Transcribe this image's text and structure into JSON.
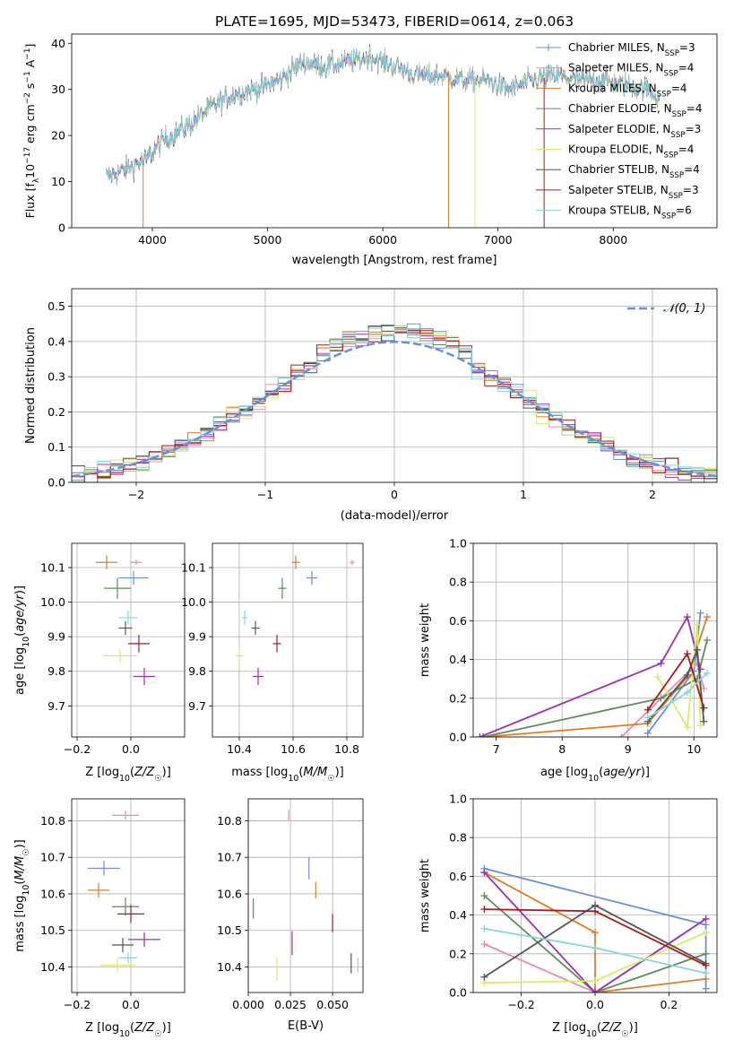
{
  "title": "PLATE=1695, MJD=53473, FIBERID=0614, z=0.063",
  "colors": {
    "Chabrier MILES": "#6a8fd8",
    "Salpeter MILES": "#e88cb0",
    "Kroupa MILES": "#e07b2a",
    "Chabrier ELODIE": "#5f8a5f",
    "Salpeter ELODIE": "#9b30b0",
    "Kroupa ELODIE": "#d6ec6a",
    "Chabrier STELIB": "#555555",
    "Salpeter STELIB": "#aa1a1a",
    "Kroupa STELIB": "#88d6dc"
  },
  "chart_data": [
    {
      "id": "spectrum",
      "type": "line",
      "title": "PLATE=1695, MJD=53473, FIBERID=0614, z=0.063",
      "xlabel": "wavelength [Angstrom, rest frame]",
      "ylabel_parts": [
        "Flux [f",
        "λ",
        "10",
        "−17",
        " erg cm",
        "−2",
        " s",
        "−1",
        " A",
        "−1",
        "]"
      ],
      "xlim": [
        3300,
        8900
      ],
      "ylim": [
        0,
        42
      ],
      "xticks": [
        4000,
        5000,
        6000,
        7000,
        8000
      ],
      "yticks": [
        0,
        10,
        20,
        30,
        40
      ],
      "continuum_x": [
        3600,
        3800,
        3950,
        4100,
        4300,
        4500,
        4700,
        4900,
        5100,
        5300,
        5500,
        5700,
        5900,
        6100,
        6300,
        6500,
        6700,
        6900,
        7100,
        7300,
        7500,
        7700,
        7900,
        8100,
        8300,
        8400
      ],
      "continuum_y": [
        11,
        13,
        15,
        19,
        22,
        26,
        29,
        30,
        32,
        36,
        35,
        36,
        37,
        35,
        33,
        33,
        32,
        32,
        30,
        32,
        33,
        32,
        32,
        31,
        30,
        28
      ],
      "legend": [
        {
          "label": "Chabrier MILES",
          "sub": "SSP",
          "n": "3"
        },
        {
          "label": "Salpeter MILES",
          "sub": "SSP",
          "n": "4"
        },
        {
          "label": "Kroupa MILES",
          "sub": "SSP",
          "n": "4"
        },
        {
          "label": "Chabrier ELODIE",
          "sub": "SSP",
          "n": "4"
        },
        {
          "label": "Salpeter ELODIE",
          "sub": "SSP",
          "n": "3"
        },
        {
          "label": "Kroupa ELODIE",
          "sub": "SSP",
          "n": "4"
        },
        {
          "label": "Chabrier STELIB",
          "sub": "SSP",
          "n": "4"
        },
        {
          "label": "Salpeter STELIB",
          "sub": "SSP",
          "n": "3"
        },
        {
          "label": "Kroupa STELIB",
          "sub": "SSP",
          "n": "6"
        }
      ]
    },
    {
      "id": "residuals",
      "type": "histogram",
      "xlabel": "(data-model)/error",
      "ylabel": "Normed distribution",
      "xlim": [
        -2.5,
        2.5
      ],
      "ylim": [
        0,
        0.55
      ],
      "xticks": [
        -2,
        -1,
        0,
        1,
        2
      ],
      "xtick_labels": [
        "−2",
        "−1",
        "0",
        "1",
        "2"
      ],
      "yticks": [
        0.0,
        0.1,
        0.2,
        0.3,
        0.4,
        0.5
      ],
      "ytick_labels": [
        "0.0",
        "0.1",
        "0.2",
        "0.3",
        "0.4",
        "0.5"
      ],
      "bin_width": 0.1,
      "legend": {
        "label": "N(0,1)",
        "sym": "𝒩(0, 1)"
      }
    },
    {
      "id": "Z-age",
      "type": "scatter",
      "xlabel": "Z [log10(Z/Z☉)]",
      "ylabel": "age  [log10(age/yr)]",
      "xlim": [
        -0.22,
        0.2
      ],
      "ylim": [
        9.61,
        10.17
      ],
      "xticks": [
        -0.2,
        0.0
      ],
      "xtick_labels": [
        "−0.2",
        "0.0"
      ],
      "yticks": [
        9.7,
        9.8,
        9.9,
        10.0,
        10.1
      ],
      "ytick_labels": [
        "9.7",
        "9.8",
        "9.9",
        "10.0",
        "10.1"
      ],
      "points": [
        {
          "name": "Chabrier MILES",
          "x": 0.01,
          "y": 10.07,
          "ex": 0.11,
          "ey": 0.04
        },
        {
          "name": "Salpeter MILES",
          "x": 0.02,
          "y": 10.115,
          "ex": 0.04,
          "ey": 0.015
        },
        {
          "name": "Kroupa MILES",
          "x": -0.09,
          "y": 10.115,
          "ex": 0.08,
          "ey": 0.04
        },
        {
          "name": "Chabrier ELODIE",
          "x": -0.05,
          "y": 10.04,
          "ex": 0.1,
          "ey": 0.06
        },
        {
          "name": "Salpeter ELODIE",
          "x": 0.05,
          "y": 9.785,
          "ex": 0.08,
          "ey": 0.05
        },
        {
          "name": "Kroupa ELODIE",
          "x": -0.04,
          "y": 9.845,
          "ex": 0.13,
          "ey": 0.04
        },
        {
          "name": "Chabrier STELIB",
          "x": -0.02,
          "y": 9.925,
          "ex": 0.05,
          "ey": 0.04
        },
        {
          "name": "Salpeter STELIB",
          "x": 0.03,
          "y": 9.88,
          "ex": 0.08,
          "ey": 0.05
        },
        {
          "name": "Kroupa STELIB",
          "x": -0.01,
          "y": 9.955,
          "ex": 0.07,
          "ey": 0.04
        }
      ]
    },
    {
      "id": "mass-age",
      "type": "scatter",
      "xlabel": "mass [log10(M/M☉)]",
      "ylabel": "",
      "xlim": [
        10.3,
        10.86
      ],
      "ylim": [
        9.61,
        10.17
      ],
      "xticks": [
        10.4,
        10.6,
        10.8
      ],
      "xtick_labels": [
        "10.4",
        "10.6",
        "10.8"
      ],
      "yticks": [
        9.7,
        9.8,
        9.9,
        10.0,
        10.1
      ],
      "ytick_labels": [
        "9.7",
        "9.8",
        "9.9",
        "10.0",
        "10.1"
      ],
      "points": [
        {
          "name": "Chabrier MILES",
          "x": 10.67,
          "y": 10.07,
          "ex": 0.04,
          "ey": 0.04
        },
        {
          "name": "Salpeter MILES",
          "x": 10.82,
          "y": 10.115,
          "ex": 0.02,
          "ey": 0.015
        },
        {
          "name": "Kroupa MILES",
          "x": 10.61,
          "y": 10.115,
          "ex": 0.03,
          "ey": 0.04
        },
        {
          "name": "Chabrier ELODIE",
          "x": 10.56,
          "y": 10.04,
          "ex": 0.03,
          "ey": 0.06
        },
        {
          "name": "Salpeter ELODIE",
          "x": 10.47,
          "y": 9.785,
          "ex": 0.04,
          "ey": 0.05
        },
        {
          "name": "Kroupa ELODIE",
          "x": 10.4,
          "y": 9.845,
          "ex": 0.03,
          "ey": 0.04
        },
        {
          "name": "Chabrier STELIB",
          "x": 10.46,
          "y": 9.925,
          "ex": 0.03,
          "ey": 0.04
        },
        {
          "name": "Salpeter STELIB",
          "x": 10.54,
          "y": 9.88,
          "ex": 0.03,
          "ey": 0.05
        },
        {
          "name": "Kroupa STELIB",
          "x": 10.42,
          "y": 9.955,
          "ex": 0.02,
          "ey": 0.04
        }
      ]
    },
    {
      "id": "age-weight",
      "type": "line",
      "xlabel": "age  [log10(age/yr)]",
      "ylabel": "mass weight",
      "xlim": [
        6.65,
        10.35
      ],
      "ylim": [
        0,
        1.0
      ],
      "xticks": [
        7,
        8,
        9,
        10
      ],
      "xtick_labels": [
        "7",
        "8",
        "9",
        "10"
      ],
      "yticks": [
        0.0,
        0.2,
        0.4,
        0.6,
        0.8,
        1.0
      ],
      "ytick_labels": [
        "0.0",
        "0.2",
        "0.4",
        "0.6",
        "0.8",
        "1.0"
      ],
      "series": [
        {
          "name": "Chabrier MILES",
          "x": [
            9.3,
            10.0,
            10.1
          ],
          "y": [
            0.02,
            0.34,
            0.64
          ]
        },
        {
          "name": "Salpeter MILES",
          "x": [
            8.9,
            10.05,
            10.15
          ],
          "y": [
            0.0,
            0.38,
            0.25
          ]
        },
        {
          "name": "Kroupa MILES",
          "x": [
            6.8,
            9.3,
            9.9,
            10.2
          ],
          "y": [
            0.0,
            0.07,
            0.31,
            0.62
          ]
        },
        {
          "name": "Chabrier ELODIE",
          "x": [
            6.8,
            9.5,
            10.05,
            10.2
          ],
          "y": [
            0.0,
            0.2,
            0.3,
            0.5
          ]
        },
        {
          "name": "Salpeter ELODIE",
          "x": [
            6.75,
            9.5,
            9.9,
            10.1
          ],
          "y": [
            0.0,
            0.38,
            0.62,
            0.35
          ]
        },
        {
          "name": "Kroupa ELODIE",
          "x": [
            9.45,
            9.9,
            10.05,
            10.1
          ],
          "y": [
            0.31,
            0.05,
            0.58,
            0.06
          ]
        },
        {
          "name": "Chabrier STELIB",
          "x": [
            9.3,
            9.9,
            10.05,
            10.15
          ],
          "y": [
            0.08,
            0.32,
            0.45,
            0.08
          ]
        },
        {
          "name": "Salpeter STELIB",
          "x": [
            9.3,
            9.9,
            10.15
          ],
          "y": [
            0.14,
            0.43,
            0.15
          ]
        },
        {
          "name": "Kroupa STELIB",
          "x": [
            9.3,
            9.9,
            10.2
          ],
          "y": [
            0.1,
            0.23,
            0.33
          ]
        }
      ]
    },
    {
      "id": "Z-mass",
      "type": "scatter",
      "xlabel": "Z [log10(Z/Z☉)]",
      "ylabel": "mass [log10(M/M☉)]",
      "xlim": [
        -0.22,
        0.2
      ],
      "ylim": [
        10.33,
        10.86
      ],
      "xticks": [
        -0.2,
        0.0
      ],
      "xtick_labels": [
        "−0.2",
        "0.0"
      ],
      "yticks": [
        10.4,
        10.5,
        10.6,
        10.7,
        10.8
      ],
      "ytick_labels": [
        "10.4",
        "10.5",
        "10.6",
        "10.7",
        "10.8"
      ],
      "points": [
        {
          "name": "Chabrier MILES",
          "x": -0.1,
          "y": 10.67,
          "ex": 0.12,
          "ey": 0.04
        },
        {
          "name": "Salpeter MILES",
          "x": -0.02,
          "y": 10.815,
          "ex": 0.1,
          "ey": 0.025
        },
        {
          "name": "Kroupa MILES",
          "x": -0.12,
          "y": 10.61,
          "ex": 0.08,
          "ey": 0.04
        },
        {
          "name": "Chabrier ELODIE",
          "x": -0.02,
          "y": 10.565,
          "ex": 0.1,
          "ey": 0.05
        },
        {
          "name": "Salpeter ELODIE",
          "x": 0.05,
          "y": 10.475,
          "ex": 0.12,
          "ey": 0.04
        },
        {
          "name": "Kroupa ELODIE",
          "x": -0.05,
          "y": 10.405,
          "ex": 0.13,
          "ey": 0.04
        },
        {
          "name": "Chabrier STELIB",
          "x": -0.03,
          "y": 10.46,
          "ex": 0.08,
          "ey": 0.04
        },
        {
          "name": "Salpeter STELIB",
          "x": 0.0,
          "y": 10.545,
          "ex": 0.1,
          "ey": 0.05
        },
        {
          "name": "Kroupa STELIB",
          "x": -0.01,
          "y": 10.425,
          "ex": 0.07,
          "ey": 0.03
        }
      ]
    },
    {
      "id": "ebv-mass",
      "type": "scatter",
      "xlabel": "E(B-V)",
      "ylabel": "",
      "xlim": [
        0.0,
        0.068
      ],
      "ylim": [
        10.33,
        10.86
      ],
      "xticks": [
        0.0,
        0.025,
        0.05
      ],
      "xtick_labels": [
        "0.000",
        "0.025",
        "0.050"
      ],
      "yticks": [
        10.4,
        10.5,
        10.6,
        10.7,
        10.8
      ],
      "ytick_labels": [
        "10.4",
        "10.5",
        "10.6",
        "10.7",
        "10.8"
      ],
      "points": [
        {
          "name": "Chabrier MILES",
          "x": 0.036,
          "y": 10.67,
          "ey": 0.06
        },
        {
          "name": "Salpeter MILES",
          "x": 0.024,
          "y": 10.815,
          "ey": 0.03
        },
        {
          "name": "Kroupa MILES",
          "x": 0.04,
          "y": 10.61,
          "ey": 0.045
        },
        {
          "name": "Chabrier ELODIE",
          "x": 0.003,
          "y": 10.56,
          "ey": 0.055
        },
        {
          "name": "Salpeter ELODIE",
          "x": 0.026,
          "y": 10.465,
          "ey": 0.065
        },
        {
          "name": "Kroupa ELODIE",
          "x": 0.017,
          "y": 10.395,
          "ey": 0.065
        },
        {
          "name": "Chabrier STELIB",
          "x": 0.061,
          "y": 10.41,
          "ey": 0.055
        },
        {
          "name": "Salpeter STELIB",
          "x": 0.05,
          "y": 10.52,
          "ey": 0.05
        },
        {
          "name": "Kroupa STELIB",
          "x": 0.065,
          "y": 10.405,
          "ey": 0.04
        }
      ]
    },
    {
      "id": "Z-weight",
      "type": "line",
      "xlabel": "Z [log10(Z/Z☉)]",
      "ylabel": "mass weight",
      "xlim": [
        -0.33,
        0.33
      ],
      "ylim": [
        0,
        1.0
      ],
      "xticks": [
        -0.2,
        0.0,
        0.2
      ],
      "xtick_labels": [
        "−0.2",
        "0.0",
        "0.2"
      ],
      "yticks": [
        0.0,
        0.2,
        0.4,
        0.6,
        0.8,
        1.0
      ],
      "ytick_labels": [
        "0.0",
        "0.2",
        "0.4",
        "0.6",
        "0.8",
        "1.0"
      ],
      "series": [
        {
          "name": "Chabrier MILES",
          "x": [
            -0.3,
            0.3,
            0.3
          ],
          "y": [
            0.64,
            0.35,
            0.02
          ]
        },
        {
          "name": "Salpeter MILES",
          "x": [
            -0.3,
            0.0,
            0.3
          ],
          "y": [
            0.25,
            0.0,
            0.38
          ]
        },
        {
          "name": "Kroupa MILES",
          "x": [
            -0.3,
            0.0,
            0.0,
            0.3
          ],
          "y": [
            0.62,
            0.31,
            0.0,
            0.07
          ]
        },
        {
          "name": "Chabrier ELODIE",
          "x": [
            -0.3,
            0.0,
            0.3
          ],
          "y": [
            0.5,
            0.0,
            0.2
          ]
        },
        {
          "name": "Salpeter ELODIE",
          "x": [
            -0.3,
            0.0,
            0.3
          ],
          "y": [
            0.62,
            0.0,
            0.38
          ]
        },
        {
          "name": "Kroupa ELODIE",
          "x": [
            -0.3,
            0.0,
            0.3
          ],
          "y": [
            0.05,
            0.06,
            0.31
          ]
        },
        {
          "name": "Chabrier STELIB",
          "x": [
            -0.3,
            0.0,
            0.3
          ],
          "y": [
            0.08,
            0.45,
            0.15
          ]
        },
        {
          "name": "Salpeter STELIB",
          "x": [
            -0.3,
            0.0,
            0.3
          ],
          "y": [
            0.43,
            0.42,
            0.14
          ]
        },
        {
          "name": "Kroupa STELIB",
          "x": [
            -0.3,
            0.0,
            0.3
          ],
          "y": [
            0.33,
            0.23,
            0.1
          ]
        }
      ]
    }
  ]
}
